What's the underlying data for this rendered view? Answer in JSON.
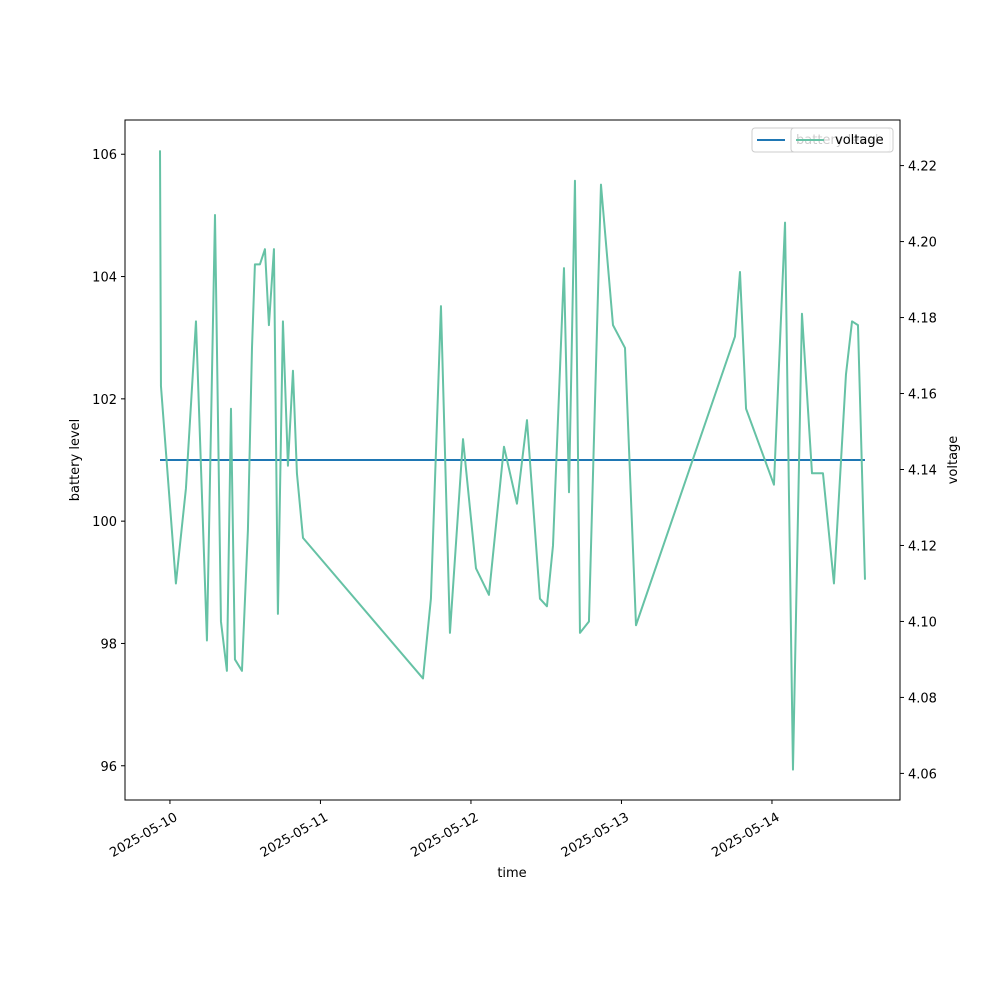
{
  "chart_data": {
    "type": "line",
    "xlabel": "time",
    "ylabel": "battery level",
    "y2label": "voltage",
    "xlim": [
      "2025-05-09T16:50",
      "2025-05-14T20:25"
    ],
    "xticks": [
      "2025-05-10",
      "2025-05-11",
      "2025-05-12",
      "2025-05-13",
      "2025-05-14"
    ],
    "ylim": [
      95.44,
      106.56
    ],
    "yticks": [
      96,
      98,
      100,
      102,
      104,
      106
    ],
    "y2lim": [
      4.053,
      4.232
    ],
    "y2ticks": [
      4.06,
      4.08,
      {
        "value": 4.1,
        "label": "4.10"
      },
      4.12,
      4.14,
      4.16,
      4.18,
      {
        "value": 4.2,
        "label": "4.20"
      },
      4.22
    ],
    "legend": "upper right",
    "x": [
      "2025-05-09T22:25",
      "2025-05-09T22:34",
      "2025-05-10T00:57",
      "2025-05-10T02:33",
      "2025-05-10T04:09",
      "2025-05-10T05:54",
      "2025-05-10T07:11",
      "2025-05-10T08:08",
      "2025-05-10T09:05",
      "2025-05-10T09:44",
      "2025-05-10T10:22",
      "2025-05-10T11:29",
      "2025-05-10T12:26",
      "2025-05-10T13:05",
      "2025-05-10T13:33",
      "2025-05-10T14:21",
      "2025-05-10T15:09",
      "2025-05-10T15:47",
      "2025-05-10T16:35",
      "2025-05-10T17:13",
      "2025-05-10T18:01",
      "2025-05-10T18:49",
      "2025-05-10T19:37",
      "2025-05-10T20:15",
      "2025-05-10T21:13",
      "2025-05-11T16:21",
      "2025-05-11T17:37",
      "2025-05-11T19:13",
      "2025-05-11T20:39",
      "2025-05-11T22:44",
      "2025-05-12T00:48",
      "2025-05-12T02:52",
      "2025-05-12T05:16",
      "2025-05-12T07:20",
      "2025-05-12T08:56",
      "2025-05-12T11:00",
      "2025-05-12T12:07",
      "2025-05-12T13:05",
      "2025-05-12T14:50",
      "2025-05-12T15:38",
      "2025-05-12T16:35",
      "2025-05-12T17:23",
      "2025-05-12T18:49",
      "2025-05-12T20:44",
      "2025-05-12T22:39",
      "2025-05-13T00:34",
      "2025-05-13T02:19",
      "2025-05-13T18:06",
      "2025-05-13T18:54",
      "2025-05-13T19:52",
      "2025-05-14T00:19",
      "2025-05-14T02:05",
      "2025-05-14T03:21",
      "2025-05-14T04:47",
      "2025-05-14T06:23",
      "2025-05-14T08:08",
      "2025-05-14T09:53",
      "2025-05-14T11:48",
      "2025-05-14T12:46",
      "2025-05-14T13:43",
      "2025-05-14T14:50"
    ],
    "series": [
      {
        "name": "battery level",
        "color": "#1f77b4",
        "axis": "y",
        "values": [
          101,
          101,
          101,
          101,
          101,
          101,
          101,
          101,
          101,
          101,
          101,
          101,
          101,
          101,
          101,
          101,
          101,
          101,
          101,
          101,
          101,
          101,
          101,
          101,
          101,
          101,
          101,
          101,
          101,
          101,
          101,
          101,
          101,
          101,
          101,
          101,
          101,
          101,
          101,
          101,
          101,
          101,
          101,
          101,
          101,
          101,
          101,
          101,
          101,
          101,
          101,
          101,
          101,
          101,
          101,
          101,
          101,
          101,
          101,
          101,
          101
        ]
      },
      {
        "name": "voltage",
        "color": "#66c2a5",
        "axis": "y2",
        "values": [
          4.224,
          4.162,
          4.11,
          4.135,
          4.179,
          4.095,
          4.207,
          4.1,
          4.087,
          4.156,
          4.09,
          4.087,
          4.124,
          4.172,
          4.194,
          4.194,
          4.198,
          4.178,
          4.198,
          4.102,
          4.179,
          4.141,
          4.166,
          4.139,
          4.122,
          4.085,
          4.106,
          4.183,
          4.097,
          4.148,
          4.114,
          4.107,
          4.146,
          4.131,
          4.153,
          4.106,
          4.104,
          4.12,
          4.193,
          4.134,
          4.216,
          4.097,
          4.1,
          4.215,
          4.178,
          4.172,
          4.099,
          4.175,
          4.192,
          4.156,
          4.136,
          4.205,
          4.061,
          4.181,
          4.139,
          4.139,
          4.11,
          4.165,
          4.179,
          4.178,
          4.111
        ]
      }
    ]
  }
}
